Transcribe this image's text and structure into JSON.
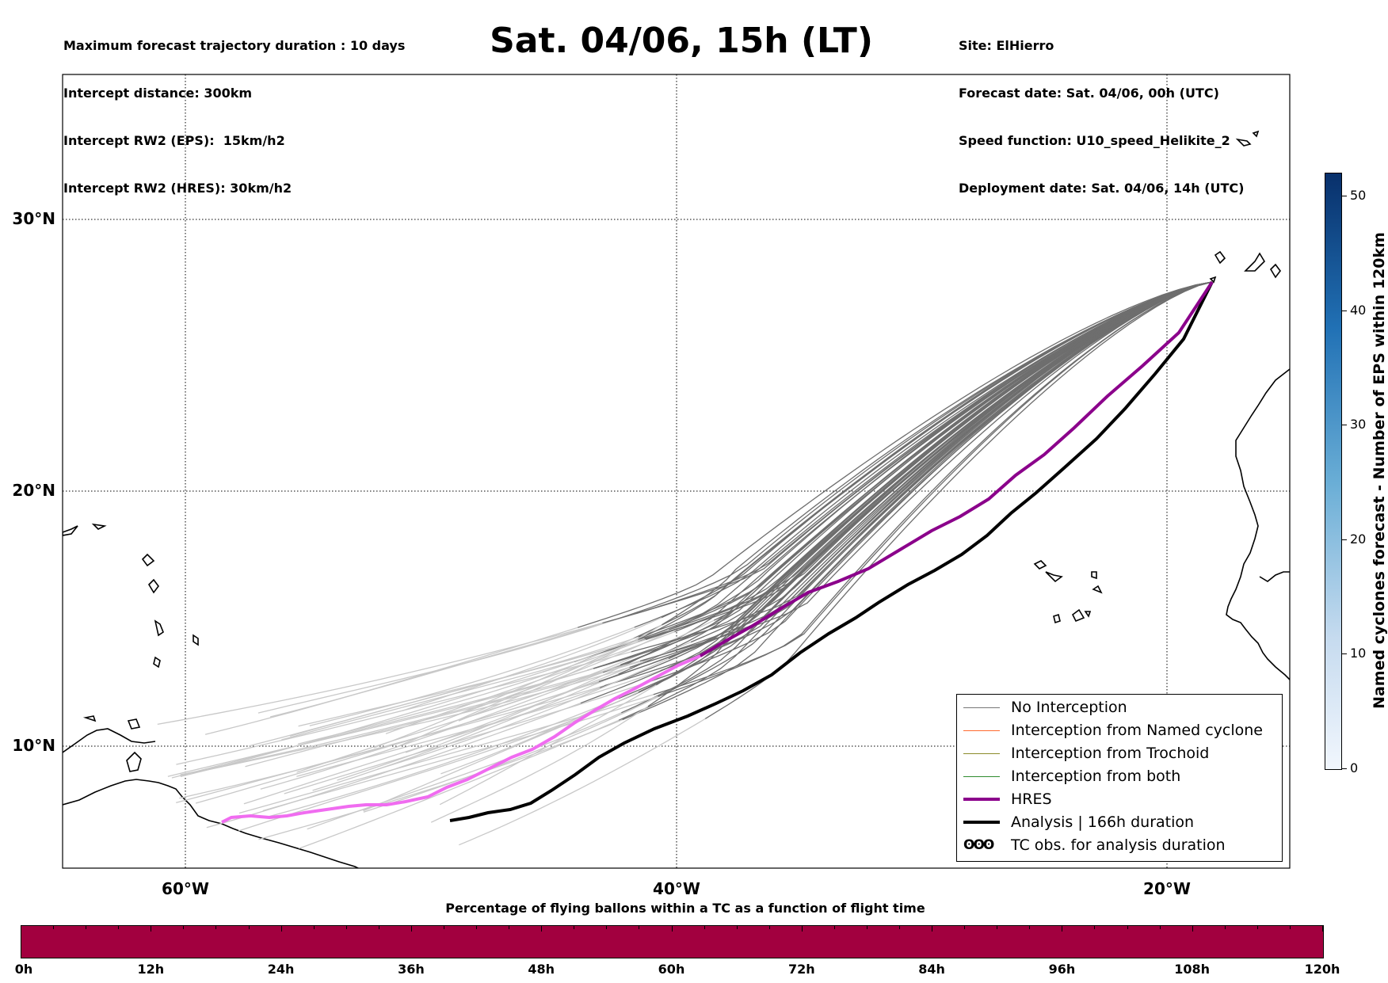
{
  "header_left": [
    "Maximum forecast trajectory duration : 10 days",
    "Intercept distance: 300km",
    "Intercept RW2 (EPS):  15km/h2",
    "Intercept RW2 (HRES): 30km/h2"
  ],
  "title": "Sat. 04/06, 15h (LT)",
  "header_right": [
    "Site: ElHierro",
    "Forecast date: Sat. 04/06, 00h (UTC)",
    "Speed function: U10_speed_Helikite_2",
    "Deployment date: Sat. 04/06, 14h (UTC)"
  ],
  "map": {
    "lon_range": [
      -65,
      -15
    ],
    "lat_range": [
      5,
      34.5
    ],
    "lat_labels": [
      "30°N",
      "20°N",
      "10°N"
    ],
    "lon_labels": [
      "60°W",
      "40°W",
      "20°W"
    ],
    "gridlines": "dotted"
  },
  "legend": {
    "items": [
      {
        "label": "No Interception",
        "color": "#777777"
      },
      {
        "label": "Interception from Named cyclone",
        "color": "#ff6a2f"
      },
      {
        "label": "Interception from Trochoid",
        "color": "#8b8b2a"
      },
      {
        "label": "Interception from both",
        "color": "#2e8b2e"
      },
      {
        "label": "HRES",
        "color": "#8b008b"
      },
      {
        "label": "Analysis | 166h duration",
        "color": "#000000"
      },
      {
        "label": "TC obs. for analysis duration",
        "symbol": "ʘʘʘ"
      }
    ]
  },
  "colorbar": {
    "title": "Named cyclones forecast - Number of EPS within 120km",
    "ticks": [
      "0",
      "10",
      "20",
      "30",
      "40",
      "50"
    ],
    "min": 0,
    "max": 52
  },
  "timebar": {
    "title": "Percentage of flying ballons within a TC as a function of flight time",
    "labels": [
      "0h",
      "12h",
      "24h",
      "36h",
      "48h",
      "60h",
      "72h",
      "84h",
      "96h",
      "108h",
      "120h"
    ],
    "color": "#a2003f"
  },
  "colors": {
    "ens_early": "#c8c8c8",
    "ens_late": "#6e6e6e",
    "hres_early": "#f06cf0",
    "hres_late": "#8b008b",
    "analysis": "#000000"
  }
}
